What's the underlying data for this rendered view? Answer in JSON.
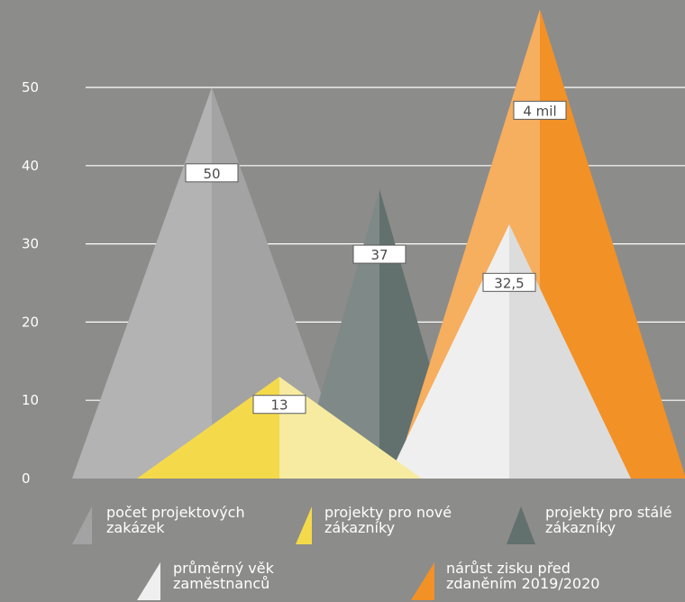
{
  "chart_data": {
    "type": "pyramid-column",
    "ylim": [
      0,
      50
    ],
    "yticks": [
      0,
      10,
      20,
      30,
      40,
      50
    ],
    "grid": true,
    "legend_position": "bottom",
    "series": [
      {
        "name": "počet projektových zakázek",
        "value": 50,
        "label": "50",
        "color_light": "#b3b3b3",
        "color_dark": "#a3a3a3"
      },
      {
        "name": "projekty pro stálé zákazníky",
        "value": 37,
        "label": "37",
        "color_light": "#7f8a88",
        "color_dark": "#62706e"
      },
      {
        "name": "nárůst zisku před zdaněním 2019/2020",
        "value": 60,
        "label": "4 mil",
        "color_light": "#f6ae5f",
        "color_dark": "#f29126"
      },
      {
        "name": "průměrný věk zaměstnanců",
        "value": 32.5,
        "label": "32,5",
        "color_light": "#efefef",
        "color_dark": "#dcdcdc"
      },
      {
        "name": "projekty pro nové zákazníky",
        "value": 13,
        "label": "13",
        "color_light": "#f4da4a",
        "color_dark": "#f6eba0"
      }
    ]
  }
}
